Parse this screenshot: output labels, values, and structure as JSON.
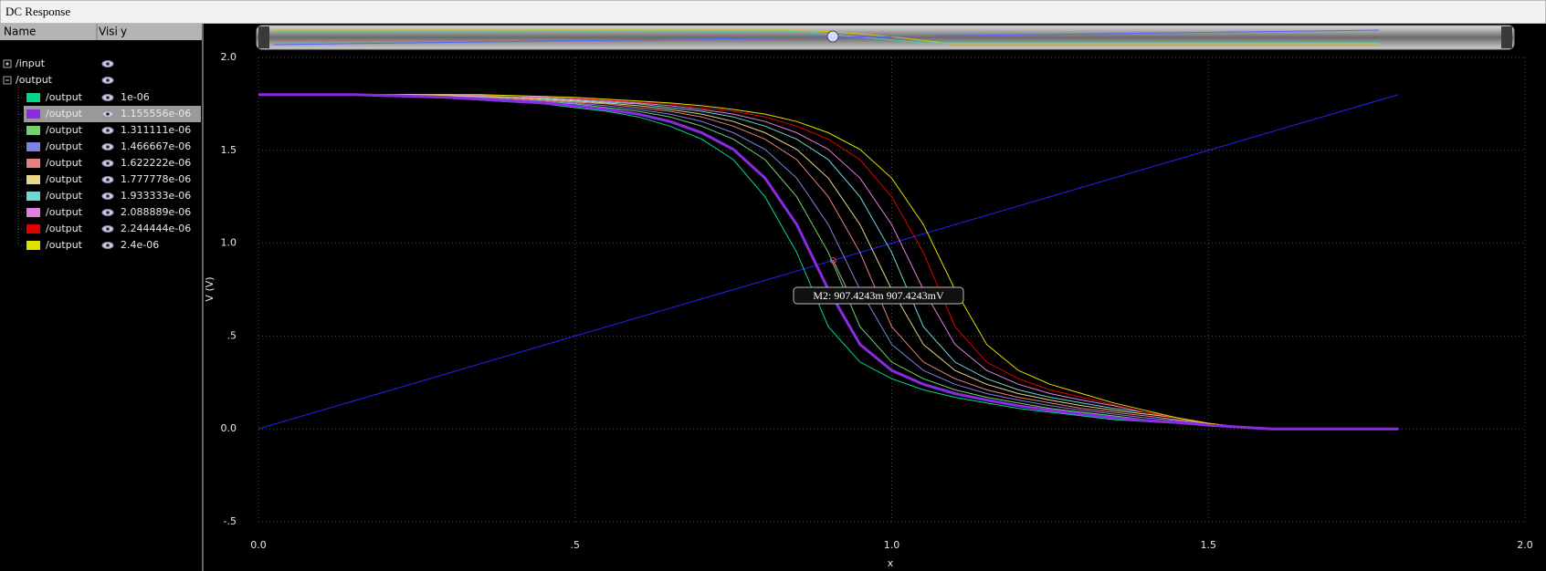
{
  "ui": {
    "window_title": "DC Response",
    "columns": [
      "Name",
      "Visi",
      "y"
    ],
    "group_label": "/output"
  },
  "chart_data": {
    "type": "line",
    "xlabel": "x",
    "ylabel": "V (V)",
    "xlim": [
      0,
      2
    ],
    "ylim": [
      -0.5,
      2
    ],
    "xticks": [
      {
        "value": 0,
        "label": "0.0"
      },
      {
        "value": 0.5,
        "label": ".5"
      },
      {
        "value": 1,
        "label": "1.0"
      },
      {
        "value": 1.5,
        "label": "1.5"
      },
      {
        "value": 2,
        "label": "2.0"
      }
    ],
    "yticks": [
      {
        "value": -0.5,
        "label": "-.5"
      },
      {
        "value": 0,
        "label": "0.0"
      },
      {
        "value": 0.5,
        "label": ".5"
      },
      {
        "value": 1,
        "label": "1.0"
      },
      {
        "value": 1.5,
        "label": "1.5"
      },
      {
        "value": 2,
        "label": "2.0"
      }
    ],
    "grid": true,
    "x": [
      0,
      0.05,
      0.1,
      0.15,
      0.2,
      0.25,
      0.3,
      0.35,
      0.4,
      0.45,
      0.5,
      0.55,
      0.6,
      0.65,
      0.7,
      0.75,
      0.8,
      0.85,
      0.9,
      0.95,
      1,
      1.05,
      1.1,
      1.15,
      1.2,
      1.25,
      1.3,
      1.35,
      1.4,
      1.45,
      1.5,
      1.55,
      1.6,
      1.65,
      1.7,
      1.75,
      1.8
    ],
    "series": [
      {
        "name": "/input",
        "color": "#2222ff",
        "x": [
          0,
          1.8
        ],
        "values": [
          0,
          1.8
        ]
      },
      {
        "name": "/output",
        "param": "1e-06",
        "color": "#00d98a",
        "values": [
          1.8,
          1.8,
          1.8,
          1.8,
          1.79,
          1.79,
          1.78,
          1.77,
          1.76,
          1.75,
          1.73,
          1.71,
          1.68,
          1.63,
          1.56,
          1.45,
          1.25,
          0.95,
          0.55,
          0.36,
          0.27,
          0.21,
          0.17,
          0.14,
          0.11,
          0.09,
          0.07,
          0.05,
          0.04,
          0.03,
          0.02,
          0.01,
          0,
          0,
          0,
          0,
          0
        ]
      },
      {
        "name": "/output",
        "param": "1.155556e-06",
        "color": "#8a2be2",
        "selected": true,
        "values": [
          1.8,
          1.8,
          1.8,
          1.8,
          1.795,
          1.79,
          1.785,
          1.775,
          1.765,
          1.755,
          1.74,
          1.72,
          1.695,
          1.655,
          1.595,
          1.505,
          1.35,
          1.1,
          0.75,
          0.455,
          0.315,
          0.24,
          0.19,
          0.155,
          0.125,
          0.1,
          0.08,
          0.06,
          0.045,
          0.035,
          0.02,
          0.01,
          0,
          0,
          0,
          0,
          0
        ]
      },
      {
        "name": "/output",
        "param": "1.311111e-06",
        "color": "#6fd36f",
        "values": [
          1.8,
          1.8,
          1.8,
          1.8,
          1.8,
          1.79,
          1.79,
          1.78,
          1.77,
          1.76,
          1.75,
          1.73,
          1.71,
          1.68,
          1.63,
          1.56,
          1.45,
          1.25,
          0.95,
          0.55,
          0.36,
          0.27,
          0.21,
          0.17,
          0.14,
          0.11,
          0.09,
          0.07,
          0.05,
          0.04,
          0.02,
          0.01,
          0,
          0,
          0,
          0,
          0
        ]
      },
      {
        "name": "/output",
        "param": "1.466667e-06",
        "color": "#8080e6",
        "values": [
          1.8,
          1.8,
          1.8,
          1.8,
          1.8,
          1.795,
          1.79,
          1.785,
          1.775,
          1.765,
          1.755,
          1.74,
          1.72,
          1.695,
          1.655,
          1.595,
          1.505,
          1.35,
          1.1,
          0.75,
          0.455,
          0.315,
          0.24,
          0.19,
          0.155,
          0.125,
          0.1,
          0.08,
          0.06,
          0.045,
          0.03,
          0.01,
          0,
          0,
          0,
          0,
          0
        ]
      },
      {
        "name": "/output",
        "param": "1.622222e-06",
        "color": "#e88080",
        "values": [
          1.8,
          1.8,
          1.8,
          1.8,
          1.8,
          1.8,
          1.79,
          1.79,
          1.78,
          1.77,
          1.76,
          1.75,
          1.73,
          1.71,
          1.68,
          1.63,
          1.56,
          1.45,
          1.25,
          0.95,
          0.55,
          0.36,
          0.27,
          0.21,
          0.17,
          0.14,
          0.11,
          0.09,
          0.07,
          0.05,
          0.03,
          0.01,
          0,
          0,
          0,
          0,
          0
        ]
      },
      {
        "name": "/output",
        "param": "1.777778e-06",
        "color": "#e6d78a",
        "values": [
          1.8,
          1.8,
          1.8,
          1.8,
          1.8,
          1.8,
          1.795,
          1.79,
          1.785,
          1.775,
          1.765,
          1.755,
          1.74,
          1.72,
          1.695,
          1.655,
          1.595,
          1.505,
          1.35,
          1.1,
          0.75,
          0.455,
          0.315,
          0.24,
          0.19,
          0.155,
          0.125,
          0.1,
          0.08,
          0.06,
          0.03,
          0.01,
          0,
          0,
          0,
          0,
          0
        ]
      },
      {
        "name": "/output",
        "param": "1.933333e-06",
        "color": "#70d6d6",
        "values": [
          1.8,
          1.8,
          1.8,
          1.8,
          1.8,
          1.8,
          1.8,
          1.79,
          1.79,
          1.78,
          1.77,
          1.76,
          1.75,
          1.73,
          1.71,
          1.68,
          1.63,
          1.56,
          1.45,
          1.25,
          0.95,
          0.55,
          0.36,
          0.27,
          0.21,
          0.17,
          0.14,
          0.11,
          0.09,
          0.06,
          0.03,
          0.01,
          0,
          0,
          0,
          0,
          0
        ]
      },
      {
        "name": "/output",
        "param": "2.088889e-06",
        "color": "#e27fe2",
        "values": [
          1.8,
          1.8,
          1.8,
          1.8,
          1.8,
          1.8,
          1.8,
          1.795,
          1.79,
          1.785,
          1.775,
          1.765,
          1.755,
          1.74,
          1.72,
          1.695,
          1.655,
          1.595,
          1.505,
          1.35,
          1.1,
          0.75,
          0.455,
          0.315,
          0.24,
          0.19,
          0.155,
          0.125,
          0.09,
          0.06,
          0.03,
          0.01,
          0,
          0,
          0,
          0,
          0
        ]
      },
      {
        "name": "/output",
        "param": "2.244444e-06",
        "color": "#e00000",
        "values": [
          1.8,
          1.8,
          1.8,
          1.8,
          1.8,
          1.8,
          1.8,
          1.8,
          1.79,
          1.79,
          1.78,
          1.77,
          1.76,
          1.75,
          1.73,
          1.71,
          1.68,
          1.63,
          1.56,
          1.45,
          1.25,
          0.95,
          0.55,
          0.36,
          0.27,
          0.21,
          0.17,
          0.13,
          0.09,
          0.06,
          0.03,
          0.01,
          0,
          0,
          0,
          0,
          0
        ]
      },
      {
        "name": "/output",
        "param": "2.4e-06",
        "color": "#e0e000",
        "values": [
          1.8,
          1.8,
          1.8,
          1.8,
          1.8,
          1.8,
          1.8,
          1.8,
          1.795,
          1.79,
          1.785,
          1.775,
          1.765,
          1.755,
          1.74,
          1.72,
          1.695,
          1.655,
          1.595,
          1.505,
          1.35,
          1.1,
          0.75,
          0.455,
          0.315,
          0.24,
          0.19,
          0.14,
          0.1,
          0.06,
          0.03,
          0.01,
          0,
          0,
          0,
          0,
          0
        ]
      }
    ],
    "marker": {
      "label": "M2: 907.4243m 907.4243mV",
      "x": 0.9074243,
      "y": 0.9074243
    }
  }
}
